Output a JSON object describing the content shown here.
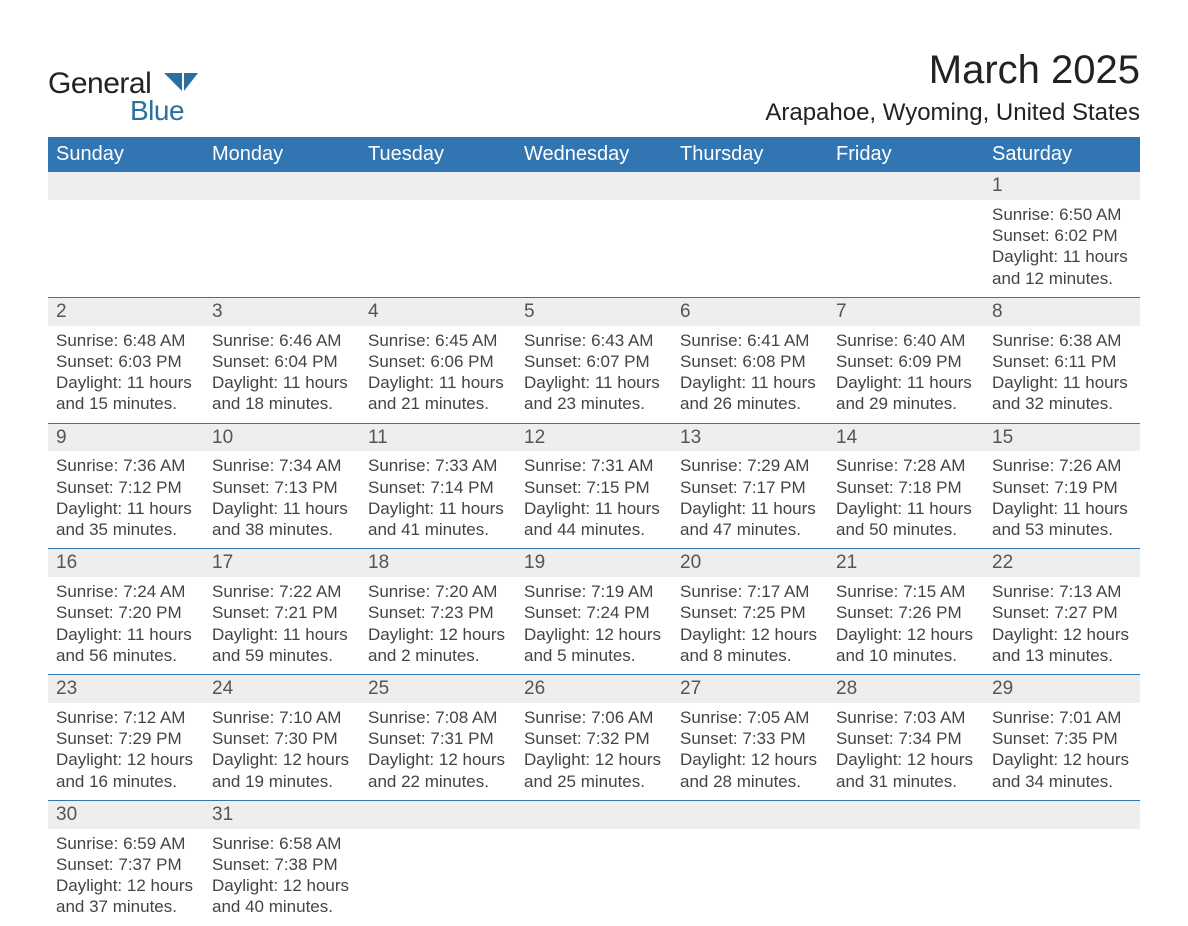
{
  "logo": {
    "text1": "General",
    "text2": "Blue",
    "color1": "#222222",
    "color2": "#2b6f9f"
  },
  "title": "March 2025",
  "location": "Arapahoe, Wyoming, United States",
  "header_bg": "#3275b3",
  "header_fg": "#ffffff",
  "daynum_bg": "#eeeeee",
  "border_color": "#3275b3",
  "text_color": "#444444",
  "days": [
    "Sunday",
    "Monday",
    "Tuesday",
    "Wednesday",
    "Thursday",
    "Friday",
    "Saturday"
  ],
  "weeks": [
    [
      null,
      null,
      null,
      null,
      null,
      null,
      {
        "n": "1",
        "sr": "6:50 AM",
        "ss": "6:02 PM",
        "dh": "11",
        "dm": "12"
      }
    ],
    [
      {
        "n": "2",
        "sr": "6:48 AM",
        "ss": "6:03 PM",
        "dh": "11",
        "dm": "15"
      },
      {
        "n": "3",
        "sr": "6:46 AM",
        "ss": "6:04 PM",
        "dh": "11",
        "dm": "18"
      },
      {
        "n": "4",
        "sr": "6:45 AM",
        "ss": "6:06 PM",
        "dh": "11",
        "dm": "21"
      },
      {
        "n": "5",
        "sr": "6:43 AM",
        "ss": "6:07 PM",
        "dh": "11",
        "dm": "23"
      },
      {
        "n": "6",
        "sr": "6:41 AM",
        "ss": "6:08 PM",
        "dh": "11",
        "dm": "26"
      },
      {
        "n": "7",
        "sr": "6:40 AM",
        "ss": "6:09 PM",
        "dh": "11",
        "dm": "29"
      },
      {
        "n": "8",
        "sr": "6:38 AM",
        "ss": "6:11 PM",
        "dh": "11",
        "dm": "32"
      }
    ],
    [
      {
        "n": "9",
        "sr": "7:36 AM",
        "ss": "7:12 PM",
        "dh": "11",
        "dm": "35"
      },
      {
        "n": "10",
        "sr": "7:34 AM",
        "ss": "7:13 PM",
        "dh": "11",
        "dm": "38"
      },
      {
        "n": "11",
        "sr": "7:33 AM",
        "ss": "7:14 PM",
        "dh": "11",
        "dm": "41"
      },
      {
        "n": "12",
        "sr": "7:31 AM",
        "ss": "7:15 PM",
        "dh": "11",
        "dm": "44"
      },
      {
        "n": "13",
        "sr": "7:29 AM",
        "ss": "7:17 PM",
        "dh": "11",
        "dm": "47"
      },
      {
        "n": "14",
        "sr": "7:28 AM",
        "ss": "7:18 PM",
        "dh": "11",
        "dm": "50"
      },
      {
        "n": "15",
        "sr": "7:26 AM",
        "ss": "7:19 PM",
        "dh": "11",
        "dm": "53"
      }
    ],
    [
      {
        "n": "16",
        "sr": "7:24 AM",
        "ss": "7:20 PM",
        "dh": "11",
        "dm": "56"
      },
      {
        "n": "17",
        "sr": "7:22 AM",
        "ss": "7:21 PM",
        "dh": "11",
        "dm": "59"
      },
      {
        "n": "18",
        "sr": "7:20 AM",
        "ss": "7:23 PM",
        "dh": "12",
        "dm": "2"
      },
      {
        "n": "19",
        "sr": "7:19 AM",
        "ss": "7:24 PM",
        "dh": "12",
        "dm": "5"
      },
      {
        "n": "20",
        "sr": "7:17 AM",
        "ss": "7:25 PM",
        "dh": "12",
        "dm": "8"
      },
      {
        "n": "21",
        "sr": "7:15 AM",
        "ss": "7:26 PM",
        "dh": "12",
        "dm": "10"
      },
      {
        "n": "22",
        "sr": "7:13 AM",
        "ss": "7:27 PM",
        "dh": "12",
        "dm": "13"
      }
    ],
    [
      {
        "n": "23",
        "sr": "7:12 AM",
        "ss": "7:29 PM",
        "dh": "12",
        "dm": "16"
      },
      {
        "n": "24",
        "sr": "7:10 AM",
        "ss": "7:30 PM",
        "dh": "12",
        "dm": "19"
      },
      {
        "n": "25",
        "sr": "7:08 AM",
        "ss": "7:31 PM",
        "dh": "12",
        "dm": "22"
      },
      {
        "n": "26",
        "sr": "7:06 AM",
        "ss": "7:32 PM",
        "dh": "12",
        "dm": "25"
      },
      {
        "n": "27",
        "sr": "7:05 AM",
        "ss": "7:33 PM",
        "dh": "12",
        "dm": "28"
      },
      {
        "n": "28",
        "sr": "7:03 AM",
        "ss": "7:34 PM",
        "dh": "12",
        "dm": "31"
      },
      {
        "n": "29",
        "sr": "7:01 AM",
        "ss": "7:35 PM",
        "dh": "12",
        "dm": "34"
      }
    ],
    [
      {
        "n": "30",
        "sr": "6:59 AM",
        "ss": "7:37 PM",
        "dh": "12",
        "dm": "37"
      },
      {
        "n": "31",
        "sr": "6:58 AM",
        "ss": "7:38 PM",
        "dh": "12",
        "dm": "40"
      },
      null,
      null,
      null,
      null,
      null
    ]
  ],
  "labels": {
    "sunrise": "Sunrise: ",
    "sunset": "Sunset: ",
    "daylight1": "Daylight: ",
    "daylight2": " hours and ",
    "daylight3": " minutes."
  }
}
